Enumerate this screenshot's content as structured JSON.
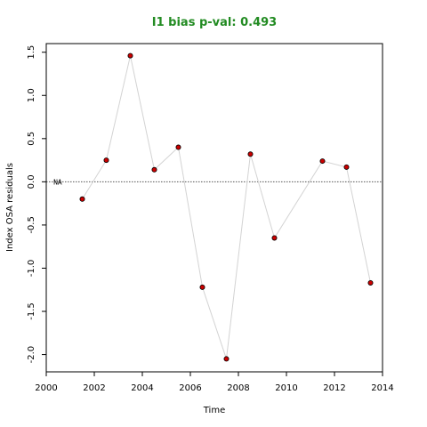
{
  "chart_data": {
    "type": "line",
    "title": "I1 bias p-val: 0.493",
    "title_color": "#228B22",
    "xlabel": "Time",
    "ylabel": "Index OSA residuals",
    "xlim": [
      2000,
      2014
    ],
    "ylim": [
      -2.2,
      1.6
    ],
    "x_ticks": [
      2000,
      2002,
      2004,
      2006,
      2008,
      2010,
      2012,
      2014
    ],
    "y_ticks": [
      -2.0,
      -1.5,
      -1.0,
      -0.5,
      0.0,
      0.5,
      1.0,
      1.5
    ],
    "y_tick_labels": [
      "-2.0",
      "-1.5",
      "-1.0",
      "-0.5",
      "0.0",
      "0.5",
      "1.0",
      "1.5"
    ],
    "reference_line": {
      "y": 0,
      "style": "dotted"
    },
    "annotation": {
      "text": "NA",
      "x": 2000.3,
      "y": 0
    },
    "line_color": "#d3d3d3",
    "point_fill": "#cc0000",
    "grid": false,
    "series": [
      {
        "points": [
          {
            "x": 2001.5,
            "y": -0.2
          },
          {
            "x": 2002.5,
            "y": 0.25
          },
          {
            "x": 2003.5,
            "y": 1.46
          },
          {
            "x": 2004.5,
            "y": 0.14
          },
          {
            "x": 2005.5,
            "y": 0.4
          },
          {
            "x": 2006.5,
            "y": -1.22
          },
          {
            "x": 2007.5,
            "y": -2.05
          },
          {
            "x": 2008.5,
            "y": 0.32
          },
          {
            "x": 2009.5,
            "y": -0.65
          },
          {
            "x": 2011.5,
            "y": 0.24
          },
          {
            "x": 2012.5,
            "y": 0.17
          },
          {
            "x": 2013.5,
            "y": -1.17
          }
        ]
      }
    ]
  }
}
